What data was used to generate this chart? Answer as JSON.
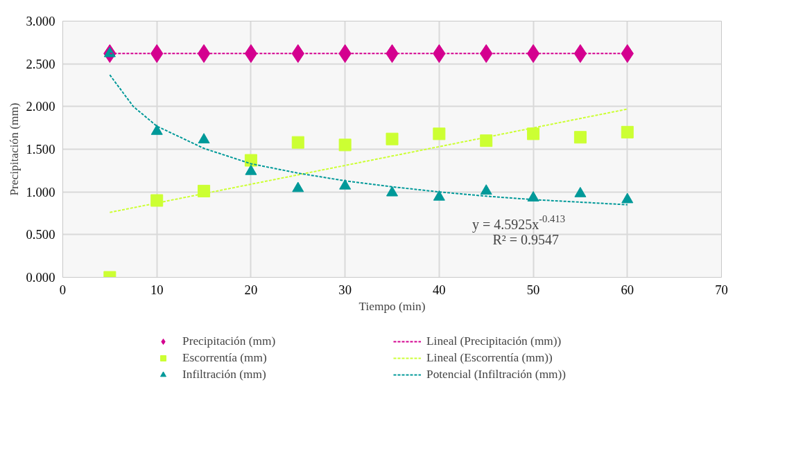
{
  "chart_data": {
    "type": "scatter",
    "xlabel": "Tiempo (min)",
    "ylabel": "Precipitación (mm)",
    "xlim": [
      0,
      70
    ],
    "xticks": [
      0,
      10,
      20,
      30,
      40,
      50,
      60,
      70
    ],
    "ylim": [
      0,
      3
    ],
    "yticks": [
      {
        "value": 0,
        "label": "0.000"
      },
      {
        "value": 0.5,
        "label": "0.500"
      },
      {
        "value": 1,
        "label": "1.000"
      },
      {
        "value": 1.5,
        "label": "1.500"
      },
      {
        "value": 2,
        "label": "2.000"
      },
      {
        "value": 2.5,
        "label": "2.500"
      },
      {
        "value": 3,
        "label": "3.000"
      }
    ],
    "grid": true,
    "legend": "bottom",
    "x": [
      5,
      10,
      15,
      20,
      25,
      30,
      35,
      40,
      45,
      50,
      55,
      60
    ],
    "series": [
      {
        "name": "Precipitación (mm)",
        "color": "#d4008f",
        "marker": "diamond",
        "values": [
          2.62,
          2.62,
          2.62,
          2.62,
          2.62,
          2.62,
          2.62,
          2.62,
          2.62,
          2.62,
          2.62,
          2.62
        ]
      },
      {
        "name": "Escorrentía (mm)",
        "color": "#ccff33",
        "marker": "square",
        "values": [
          0.0,
          0.9,
          1.01,
          1.37,
          1.58,
          1.55,
          1.62,
          1.68,
          1.6,
          1.68,
          1.64,
          1.7
        ]
      },
      {
        "name": "Infiltración (mm)",
        "color": "#009999",
        "marker": "triangle",
        "values": [
          2.62,
          1.71,
          1.61,
          1.24,
          1.04,
          1.07,
          0.99,
          0.94,
          1.01,
          0.93,
          0.98,
          0.91
        ]
      },
      {
        "name": "Lineal (Precipitación (mm))",
        "type": "line",
        "color": "#d4008f",
        "marker": "none",
        "line_style": "dashed",
        "x": [
          5,
          60
        ],
        "values": [
          2.62,
          2.62
        ]
      },
      {
        "name": "Lineal (Escorrentía (mm))",
        "type": "line",
        "color": "#ccff33",
        "marker": "none",
        "line_style": "dashed",
        "x": [
          5,
          60
        ],
        "values": [
          0.76,
          1.97
        ]
      },
      {
        "name": "Potencial (Infiltración (mm))",
        "type": "line",
        "color": "#009999",
        "marker": "none",
        "line_style": "dashed",
        "x": [
          5,
          7.5,
          10,
          15,
          20,
          25,
          30,
          35,
          40,
          45,
          50,
          55,
          60
        ],
        "values": [
          2.37,
          2.0,
          1.77,
          1.51,
          1.33,
          1.22,
          1.13,
          1.06,
          1.0,
          0.95,
          0.91,
          0.88,
          0.85
        ]
      }
    ],
    "annotations": [
      "y = 4.5925x$^{-0.413}$",
      "R² = 0.9547"
    ]
  }
}
